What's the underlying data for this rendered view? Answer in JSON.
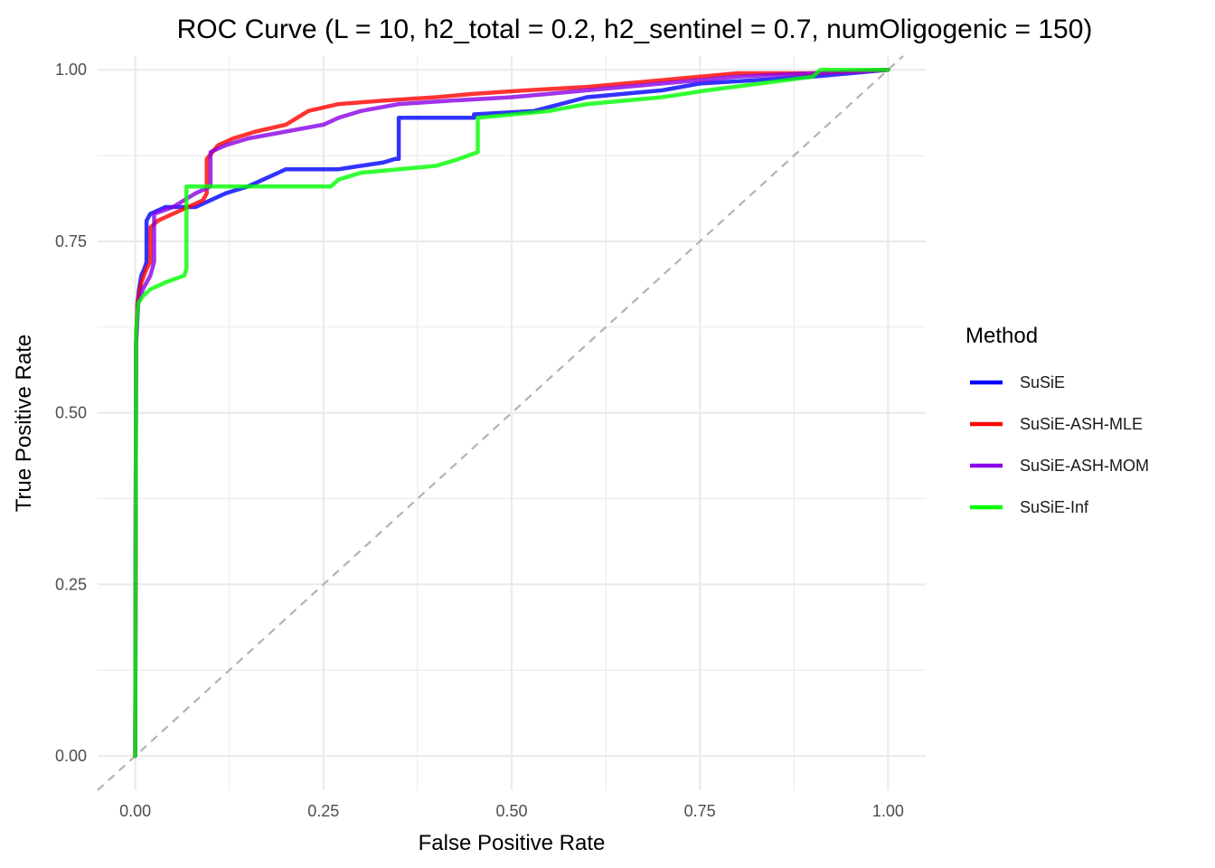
{
  "chart_data": {
    "type": "line",
    "title": "ROC Curve (L = 10, h2_total = 0.2, h2_sentinel = 0.7, numOligogenic = 150)",
    "xlabel": "False Positive Rate",
    "ylabel": "True Positive Rate",
    "xlim": [
      -0.05,
      1.05
    ],
    "ylim": [
      -0.05,
      1.02
    ],
    "xticks": [
      0.0,
      0.25,
      0.5,
      0.75,
      1.0
    ],
    "xtick_labels": [
      "0.00",
      "0.25",
      "0.50",
      "0.75",
      "1.00"
    ],
    "yticks": [
      0.0,
      0.25,
      0.5,
      0.75,
      1.0
    ],
    "ytick_labels": [
      "0.00",
      "0.25",
      "0.50",
      "0.75",
      "1.00"
    ],
    "grid": true,
    "reference_line": {
      "x": [
        0,
        1
      ],
      "y": [
        0,
        1
      ],
      "style": "dashed",
      "color": "#b3b3b3"
    },
    "legend": {
      "title": "Method",
      "position": "right"
    },
    "series": [
      {
        "name": "SuSiE",
        "color": "#0000ff",
        "x": [
          0,
          0.001,
          0.003,
          0.005,
          0.008,
          0.012,
          0.015,
          0.015,
          0.02,
          0.04,
          0.08,
          0.1,
          0.12,
          0.15,
          0.17,
          0.19,
          0.2,
          0.24,
          0.27,
          0.3,
          0.33,
          0.345,
          0.35,
          0.35,
          0.45,
          0.45,
          0.53,
          0.6,
          0.7,
          0.75,
          0.9,
          1.0
        ],
        "y": [
          0,
          0.6,
          0.66,
          0.68,
          0.7,
          0.71,
          0.72,
          0.78,
          0.79,
          0.8,
          0.8,
          0.81,
          0.82,
          0.83,
          0.84,
          0.85,
          0.855,
          0.855,
          0.855,
          0.86,
          0.865,
          0.87,
          0.87,
          0.93,
          0.93,
          0.935,
          0.94,
          0.96,
          0.97,
          0.98,
          0.99,
          1.0
        ]
      },
      {
        "name": "SuSiE-ASH-MLE",
        "color": "#ff0000",
        "x": [
          0,
          0.001,
          0.003,
          0.008,
          0.015,
          0.02,
          0.02,
          0.03,
          0.05,
          0.07,
          0.09,
          0.095,
          0.095,
          0.11,
          0.13,
          0.16,
          0.2,
          0.23,
          0.25,
          0.27,
          0.33,
          0.4,
          0.45,
          0.52,
          0.6,
          0.7,
          0.8,
          0.9,
          1.0
        ],
        "y": [
          0,
          0.6,
          0.66,
          0.69,
          0.71,
          0.72,
          0.77,
          0.78,
          0.79,
          0.8,
          0.81,
          0.82,
          0.87,
          0.89,
          0.9,
          0.91,
          0.92,
          0.94,
          0.945,
          0.95,
          0.955,
          0.96,
          0.965,
          0.97,
          0.975,
          0.985,
          0.995,
          0.995,
          1.0
        ]
      },
      {
        "name": "SuSiE-ASH-MOM",
        "color": "#8a00e6",
        "x": [
          0,
          0.001,
          0.004,
          0.01,
          0.02,
          0.025,
          0.025,
          0.05,
          0.08,
          0.1,
          0.1,
          0.12,
          0.15,
          0.2,
          0.25,
          0.27,
          0.3,
          0.35,
          0.42,
          0.5,
          0.55,
          0.6,
          0.7,
          0.8,
          0.9,
          1.0
        ],
        "y": [
          0,
          0.6,
          0.66,
          0.68,
          0.7,
          0.72,
          0.79,
          0.8,
          0.82,
          0.83,
          0.88,
          0.89,
          0.9,
          0.91,
          0.92,
          0.93,
          0.94,
          0.95,
          0.955,
          0.96,
          0.965,
          0.97,
          0.98,
          0.99,
          0.995,
          1.0
        ]
      },
      {
        "name": "SuSiE-Inf",
        "color": "#00ff00",
        "x": [
          0,
          0.001,
          0.004,
          0.01,
          0.02,
          0.04,
          0.065,
          0.068,
          0.068,
          0.15,
          0.26,
          0.27,
          0.3,
          0.35,
          0.4,
          0.43,
          0.455,
          0.455,
          0.55,
          0.6,
          0.7,
          0.76,
          0.9,
          0.91,
          1.0
        ],
        "y": [
          0,
          0.62,
          0.66,
          0.67,
          0.68,
          0.69,
          0.7,
          0.71,
          0.83,
          0.83,
          0.83,
          0.84,
          0.85,
          0.855,
          0.86,
          0.87,
          0.88,
          0.93,
          0.94,
          0.95,
          0.96,
          0.97,
          0.99,
          1.0,
          1.0
        ]
      }
    ]
  }
}
